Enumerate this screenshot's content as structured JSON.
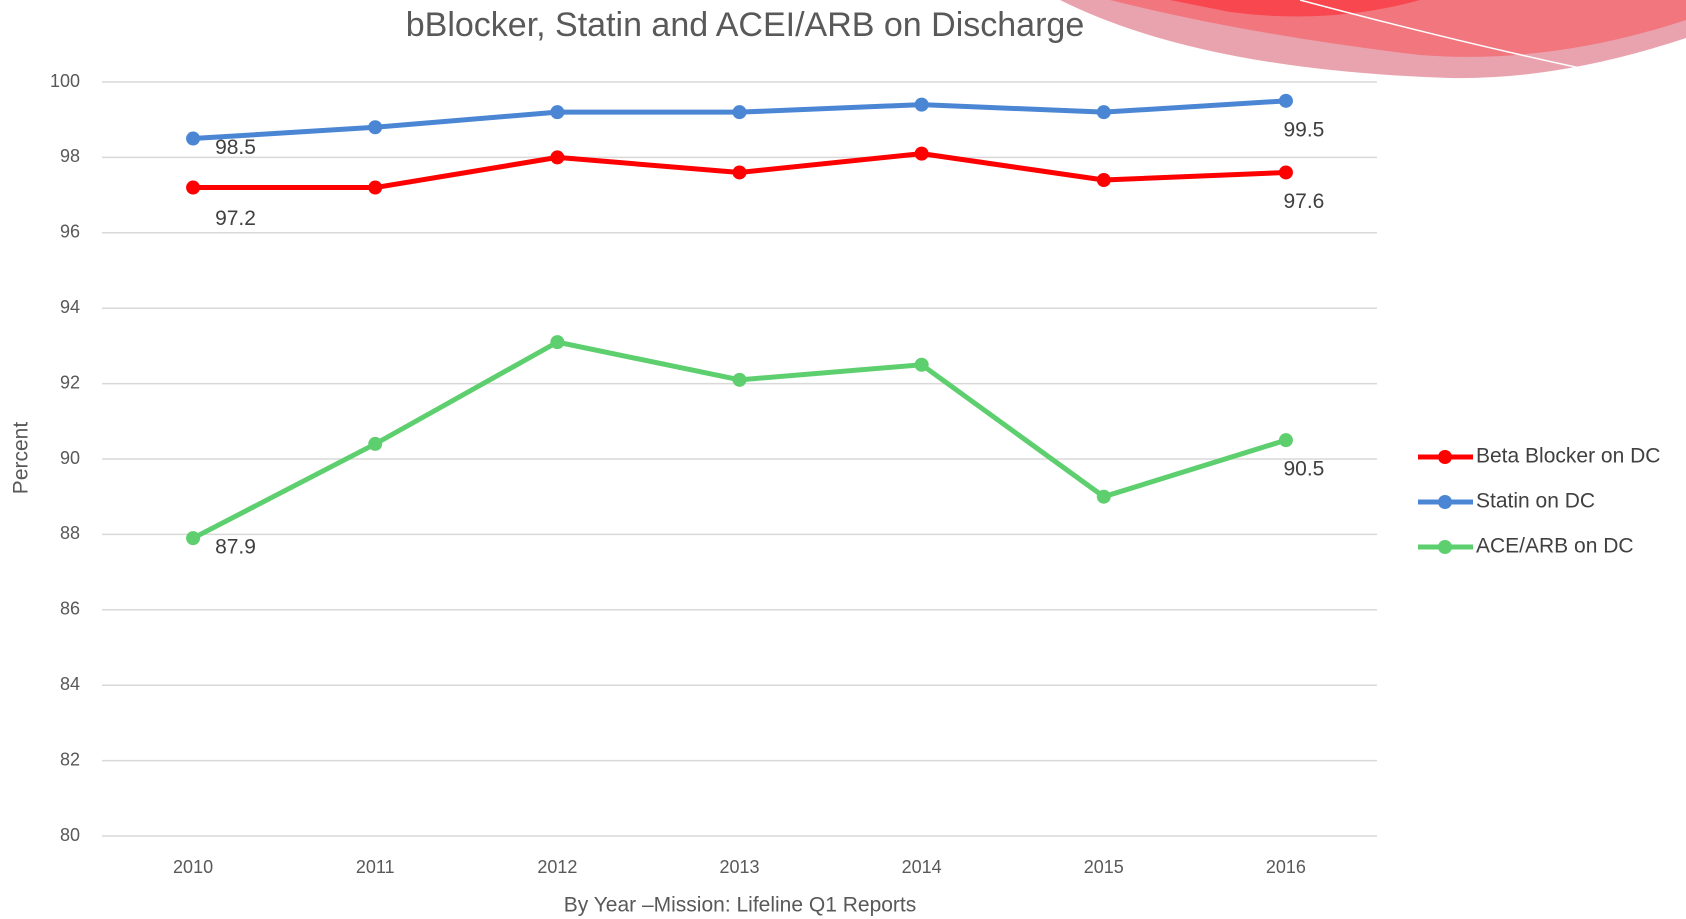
{
  "chart_data": {
    "type": "line",
    "title": "bBlocker, Statin and ACEI/ARB on Discharge",
    "x_label": "By Year –Mission: Lifeline Q1 Reports",
    "y_label": "Percent",
    "categories": [
      "2010",
      "2011",
      "2012",
      "2013",
      "2014",
      "2015",
      "2016"
    ],
    "series": [
      {
        "name": "Beta Blocker on DC",
        "color": "#ff0000",
        "values": [
          97.2,
          97.2,
          98.0,
          97.6,
          98.1,
          97.4,
          97.6
        ],
        "value_labels": [
          "97.2",
          null,
          null,
          null,
          null,
          null,
          "97.6"
        ]
      },
      {
        "name": "Statin on DC",
        "color": "#4a86d4",
        "values": [
          98.5,
          98.8,
          99.2,
          99.2,
          99.4,
          99.2,
          99.5
        ],
        "value_labels": [
          "98.5",
          null,
          null,
          null,
          null,
          null,
          "99.5"
        ]
      },
      {
        "name": "ACE/ARB on DC",
        "color": "#5ecf6e",
        "values": [
          87.9,
          90.4,
          93.1,
          92.1,
          92.5,
          89.0,
          90.5
        ],
        "value_labels": [
          "87.9",
          null,
          null,
          null,
          null,
          null,
          "90.5"
        ]
      }
    ],
    "ylim": [
      80,
      100
    ],
    "yticks": [
      80,
      82,
      84,
      86,
      88,
      90,
      92,
      94,
      96,
      98,
      100
    ],
    "grid": true,
    "legend": "right"
  }
}
